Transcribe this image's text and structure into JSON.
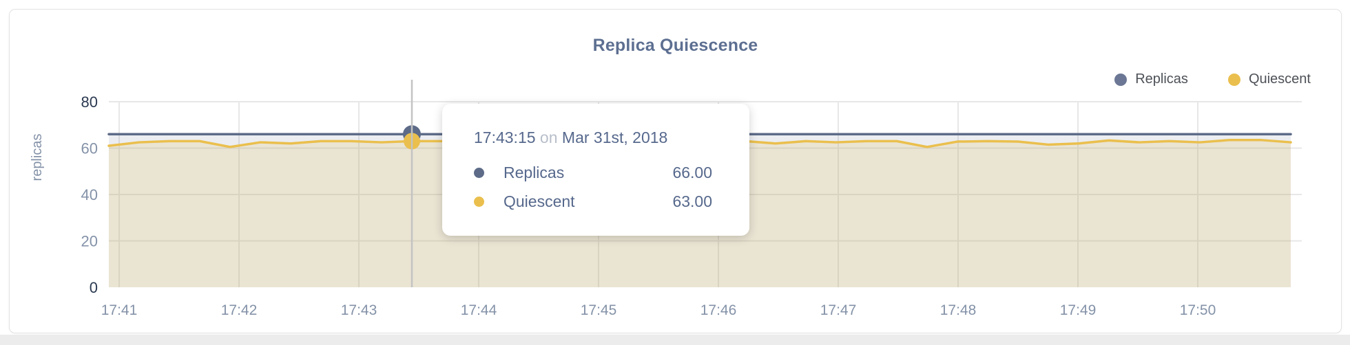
{
  "title": "Replica Quiescence",
  "legend": [
    {
      "label": "Replicas",
      "color": "#6b7794"
    },
    {
      "label": "Quiescent",
      "color": "#eabf4d"
    }
  ],
  "tooltip": {
    "time": "17:43:15",
    "connector": "on",
    "date": "Mar 31st, 2018",
    "rows": [
      {
        "label": "Replicas",
        "value": "66.00",
        "color": "#5d6b88"
      },
      {
        "label": "Quiescent",
        "value": "63.00",
        "color": "#eabf4d"
      }
    ]
  },
  "colors": {
    "grid": "#e7e7e7",
    "crosshair": "#c3c3c3",
    "axis_text": "#8492a8",
    "axis_text_dark": "#2b3950",
    "title_text": "#5d6f91"
  },
  "chart_data": {
    "type": "line",
    "title": "Replica Quiescence",
    "xlabel": "",
    "ylabel": "replicas",
    "ylim": [
      0,
      80
    ],
    "y_ticks": [
      0,
      20,
      40,
      60,
      80
    ],
    "y_ticks_dark": [
      0,
      80
    ],
    "x_tick_labels": [
      "17:41",
      "17:42",
      "17:43",
      "17:44",
      "17:45",
      "17:46",
      "17:47",
      "17:48",
      "17:49",
      "17:50"
    ],
    "grid": true,
    "legend_position": "top-right",
    "x": [
      "17:40:45",
      "17:41:00",
      "17:41:15",
      "17:41:30",
      "17:41:45",
      "17:42:00",
      "17:42:15",
      "17:42:30",
      "17:42:45",
      "17:43:00",
      "17:43:15",
      "17:43:30",
      "17:43:45",
      "17:44:00",
      "17:44:15",
      "17:44:30",
      "17:44:45",
      "17:45:00",
      "17:45:15",
      "17:45:30",
      "17:45:45",
      "17:46:00",
      "17:46:15",
      "17:46:30",
      "17:46:45",
      "17:47:00",
      "17:47:15",
      "17:47:30",
      "17:47:45",
      "17:48:00",
      "17:48:15",
      "17:48:30",
      "17:48:45",
      "17:49:00",
      "17:49:15",
      "17:49:30",
      "17:49:45",
      "17:50:00",
      "17:50:15",
      "17:50:30"
    ],
    "series": [
      {
        "name": "Replicas",
        "color": "#5d6b88",
        "fill": "rgba(93,107,136,0.12)",
        "values": [
          66,
          66,
          66,
          66,
          66,
          66,
          66,
          66,
          66,
          66,
          66,
          66,
          66,
          66,
          66,
          66,
          66,
          66,
          66,
          66,
          66,
          66,
          66,
          66,
          66,
          66,
          66,
          66,
          66,
          66,
          66,
          66,
          66,
          66,
          66,
          66,
          66,
          66,
          66,
          66
        ]
      },
      {
        "name": "Quiescent",
        "color": "#eabf4d",
        "fill": "rgba(234,191,77,0.18)",
        "values": [
          61,
          62.5,
          63,
          63,
          60.5,
          62.5,
          62,
          63,
          63,
          62.5,
          63,
          63,
          62.5,
          63,
          63,
          62,
          62.8,
          62.3,
          63,
          62.5,
          63,
          63,
          62,
          63,
          62.5,
          63,
          63,
          60.5,
          62.8,
          63,
          62.8,
          61.5,
          62,
          63.3,
          62.5,
          63,
          62.5,
          63.5,
          63.5,
          62.5
        ]
      }
    ],
    "hover": {
      "index": 10,
      "time": "17:43:15",
      "date": "Mar 31st, 2018",
      "values": {
        "Replicas": 66.0,
        "Quiescent": 63.0
      }
    }
  }
}
